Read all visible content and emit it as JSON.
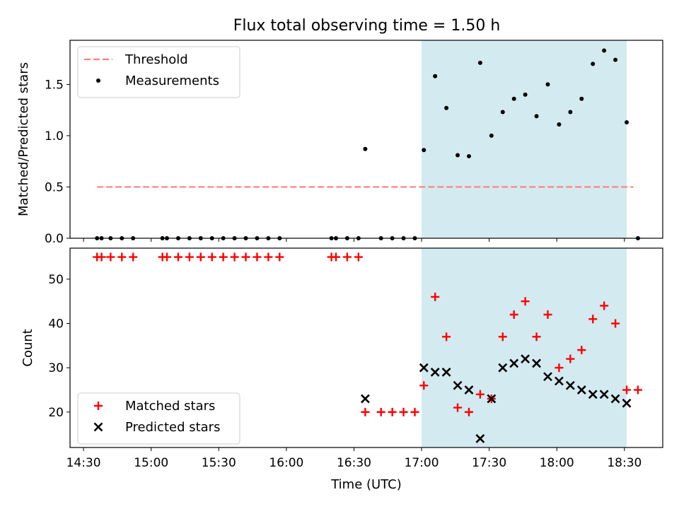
{
  "chart_data": [
    {
      "type": "scatter",
      "title": "Flux total observing time = 1.50 h",
      "xlabel": "",
      "ylabel": "Matched/Predicted stars",
      "x_ticks": [
        "14:30",
        "15:00",
        "15:30",
        "16:00",
        "16:30",
        "17:00",
        "17:30",
        "18:00",
        "18:30"
      ],
      "xlim": [
        "14:24",
        "18:47"
      ],
      "ylim": [
        0,
        1.93
      ],
      "y_ticks": [
        0.0,
        0.5,
        1.0,
        1.5
      ],
      "y_tick_labels": [
        "0.0",
        "0.5",
        "1.0",
        "1.5"
      ],
      "legend_position": "top-left",
      "highlight_span": {
        "start": "17:00",
        "end": "18:31",
        "color": "#d3eaf0"
      },
      "threshold": {
        "name": "Threshold",
        "value": 0.5,
        "x_start": "14:36",
        "x_end": "18:34",
        "color": "#ff7f7f",
        "style": "dashed"
      },
      "series": [
        {
          "name": "Measurements",
          "color": "#000000",
          "x": [
            "14:36",
            "14:38",
            "14:42",
            "14:47",
            "14:52",
            "15:05",
            "15:07",
            "15:12",
            "15:17",
            "15:22",
            "15:27",
            "15:32",
            "15:37",
            "15:42",
            "15:47",
            "15:52",
            "15:57",
            "16:20",
            "16:22",
            "16:27",
            "16:32",
            "16:35",
            "16:42",
            "16:47",
            "16:52",
            "16:57",
            "17:01",
            "17:06",
            "17:11",
            "17:16",
            "17:21",
            "17:26",
            "17:31",
            "17:36",
            "17:41",
            "17:46",
            "17:51",
            "17:56",
            "18:01",
            "18:06",
            "18:11",
            "18:16",
            "18:21",
            "18:26",
            "18:31",
            "18:36"
          ],
          "y": [
            0,
            0,
            0,
            0,
            0,
            0,
            0,
            0,
            0,
            0,
            0,
            0,
            0,
            0,
            0,
            0,
            0,
            0,
            0,
            0,
            0,
            0.87,
            0,
            0,
            0,
            0,
            0.86,
            1.58,
            1.27,
            0.81,
            0.8,
            1.71,
            1.0,
            1.23,
            1.36,
            1.4,
            1.19,
            1.5,
            1.11,
            1.23,
            1.36,
            1.7,
            1.83,
            1.74,
            1.13,
            0
          ]
        }
      ]
    },
    {
      "type": "scatter",
      "title": "",
      "xlabel": "Time (UTC)",
      "ylabel": "Count",
      "x_ticks": [
        "14:30",
        "15:00",
        "15:30",
        "16:00",
        "16:30",
        "17:00",
        "17:30",
        "18:00",
        "18:30"
      ],
      "xlim": [
        "14:24",
        "18:47"
      ],
      "ylim": [
        12,
        57
      ],
      "y_ticks": [
        20,
        30,
        40,
        50
      ],
      "y_tick_labels": [
        "20",
        "30",
        "40",
        "50"
      ],
      "legend_position": "bottom-left",
      "highlight_span": {
        "start": "17:00",
        "end": "18:31",
        "color": "#d3eaf0"
      },
      "series": [
        {
          "name": "Matched stars",
          "marker": "+",
          "color": "#ff0000",
          "x": [
            "14:36",
            "14:38",
            "14:42",
            "14:47",
            "14:52",
            "15:05",
            "15:07",
            "15:12",
            "15:17",
            "15:22",
            "15:27",
            "15:32",
            "15:37",
            "15:42",
            "15:47",
            "15:52",
            "15:57",
            "16:20",
            "16:22",
            "16:27",
            "16:32",
            "16:35",
            "16:42",
            "16:47",
            "16:52",
            "16:57",
            "17:01",
            "17:06",
            "17:11",
            "17:16",
            "17:21",
            "17:26",
            "17:31",
            "17:36",
            "17:41",
            "17:46",
            "17:51",
            "17:56",
            "18:01",
            "18:06",
            "18:11",
            "18:16",
            "18:21",
            "18:26",
            "18:31",
            "18:36"
          ],
          "y": [
            55,
            55,
            55,
            55,
            55,
            55,
            55,
            55,
            55,
            55,
            55,
            55,
            55,
            55,
            55,
            55,
            55,
            55,
            55,
            55,
            55,
            20,
            20,
            20,
            20,
            20,
            26,
            46,
            37,
            21,
            20,
            24,
            23,
            37,
            42,
            45,
            37,
            42,
            30,
            32,
            34,
            41,
            44,
            40,
            25,
            25
          ]
        },
        {
          "name": "Predicted stars",
          "marker": "x",
          "color": "#000000",
          "x": [
            "16:35",
            "17:01",
            "17:06",
            "17:11",
            "17:16",
            "17:21",
            "17:26",
            "17:31",
            "17:36",
            "17:41",
            "17:46",
            "17:51",
            "17:56",
            "18:01",
            "18:06",
            "18:11",
            "18:16",
            "18:21",
            "18:26",
            "18:31"
          ],
          "y": [
            23,
            30,
            29,
            29,
            26,
            25,
            14,
            23,
            30,
            31,
            32,
            31,
            28,
            27,
            26,
            25,
            24,
            24,
            23,
            22
          ]
        }
      ]
    }
  ]
}
